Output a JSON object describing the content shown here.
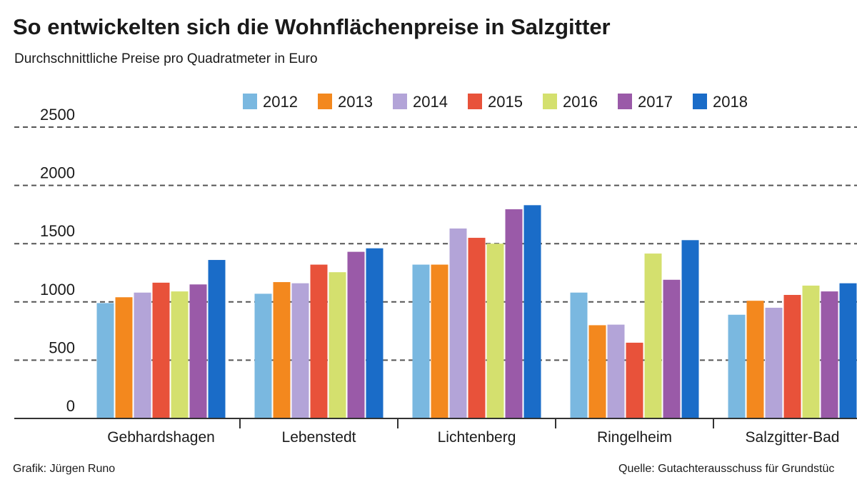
{
  "chart_data": {
    "type": "bar",
    "title": "So entwickelten sich die Wohnflächenpreise in Salzgitter",
    "subtitle": "Durchschnittliche Preise pro Quadratmeter in Euro",
    "categories": [
      "Gebhardshagen",
      "Lebenstedt",
      "Lichtenberg",
      "Ringelheim",
      "Salzgitter-Bad"
    ],
    "series": [
      {
        "name": "2012",
        "color": "#7ab8e0",
        "values": [
          990,
          1070,
          1320,
          1080,
          890
        ]
      },
      {
        "name": "2013",
        "color": "#f3881e",
        "values": [
          1040,
          1170,
          1320,
          800,
          1010
        ]
      },
      {
        "name": "2014",
        "color": "#b3a4d8",
        "values": [
          1080,
          1160,
          1630,
          805,
          950
        ]
      },
      {
        "name": "2015",
        "color": "#e8523a",
        "values": [
          1165,
          1320,
          1550,
          650,
          1060
        ]
      },
      {
        "name": "2016",
        "color": "#d4e06e",
        "values": [
          1090,
          1255,
          1500,
          1415,
          1140
        ]
      },
      {
        "name": "2017",
        "color": "#9a5aa8",
        "values": [
          1150,
          1430,
          1795,
          1190,
          1090
        ]
      },
      {
        "name": "2018",
        "color": "#1a6cc8",
        "values": [
          1360,
          1460,
          1830,
          1530,
          1160
        ]
      }
    ],
    "ylim": [
      0,
      2500
    ],
    "yticks": [
      0,
      500,
      1000,
      1500,
      2000,
      2500
    ],
    "grid": true,
    "source_left": "Grafik: Jürgen Runo",
    "source_right": "Quelle: Gutachterausschuss für Grundstüc"
  }
}
